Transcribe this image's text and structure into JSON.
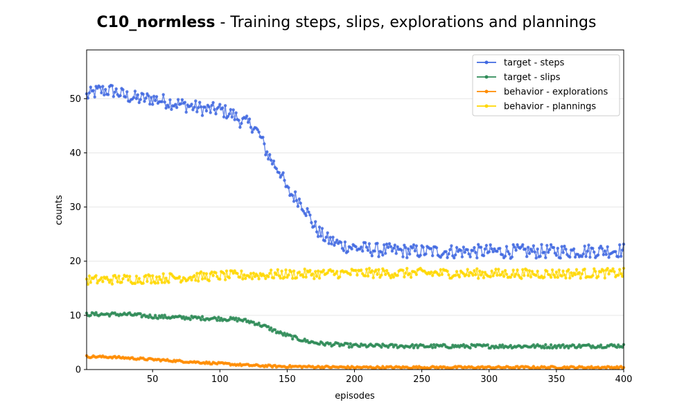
{
  "title_bold": "C10_normless",
  "title_rest": " - Training steps, slips, explorations and plannings",
  "chart_data": {
    "type": "line",
    "title": "C10_normless - Training steps, slips, explorations and plannings",
    "xlabel": "episodes",
    "ylabel": "counts",
    "xlim": [
      1,
      400
    ],
    "ylim": [
      0,
      59
    ],
    "xticks": [
      50,
      100,
      150,
      200,
      250,
      300,
      350,
      400
    ],
    "yticks": [
      0,
      10,
      20,
      30,
      40,
      50
    ],
    "grid": "horizontal",
    "legend_position": "top-right",
    "series": [
      {
        "name": "target - steps",
        "color": "#4169e1",
        "anchors_x": [
          1,
          10,
          20,
          30,
          40,
          50,
          60,
          70,
          80,
          90,
          100,
          110,
          115,
          120,
          125,
          130,
          135,
          140,
          145,
          150,
          155,
          160,
          165,
          170,
          175,
          180,
          190,
          200,
          220,
          250,
          300,
          350,
          400
        ],
        "anchors_y": [
          50.5,
          51.5,
          51.5,
          50.5,
          50.0,
          50.0,
          49.5,
          49.0,
          48.5,
          48.0,
          48.0,
          47.0,
          46.0,
          45.5,
          45.0,
          43.0,
          40.0,
          38.0,
          36.5,
          33.0,
          32.0,
          31.0,
          29.0,
          26.5,
          25.0,
          24.0,
          23.0,
          22.5,
          22.0,
          21.8,
          21.8,
          21.8,
          22.0
        ],
        "noise": 1.3
      },
      {
        "name": "target - slips",
        "color": "#2e8b57",
        "anchors_x": [
          1,
          30,
          50,
          70,
          100,
          115,
          125,
          135,
          145,
          155,
          165,
          175,
          200,
          250,
          300,
          350,
          400
        ],
        "anchors_y": [
          10.2,
          10.2,
          9.8,
          9.6,
          9.4,
          9.2,
          8.7,
          7.8,
          6.7,
          5.9,
          5.2,
          4.8,
          4.4,
          4.3,
          4.3,
          4.3,
          4.4
        ],
        "noise": 0.35
      },
      {
        "name": "behavior - explorations",
        "color": "#ff8c00",
        "anchors_x": [
          1,
          20,
          40,
          60,
          80,
          100,
          120,
          140,
          170,
          200,
          250,
          300,
          350,
          400
        ],
        "anchors_y": [
          2.4,
          2.3,
          2.0,
          1.7,
          1.4,
          1.1,
          0.8,
          0.6,
          0.5,
          0.4,
          0.4,
          0.4,
          0.4,
          0.4
        ],
        "noise": 0.2
      },
      {
        "name": "behavior - plannings",
        "color": "#ffd700",
        "anchors_x": [
          1,
          50,
          100,
          150,
          200,
          250,
          300,
          350,
          400
        ],
        "anchors_y": [
          16.5,
          16.8,
          17.3,
          17.6,
          17.8,
          17.8,
          17.7,
          17.7,
          17.8
        ],
        "noise": 0.9
      }
    ]
  }
}
